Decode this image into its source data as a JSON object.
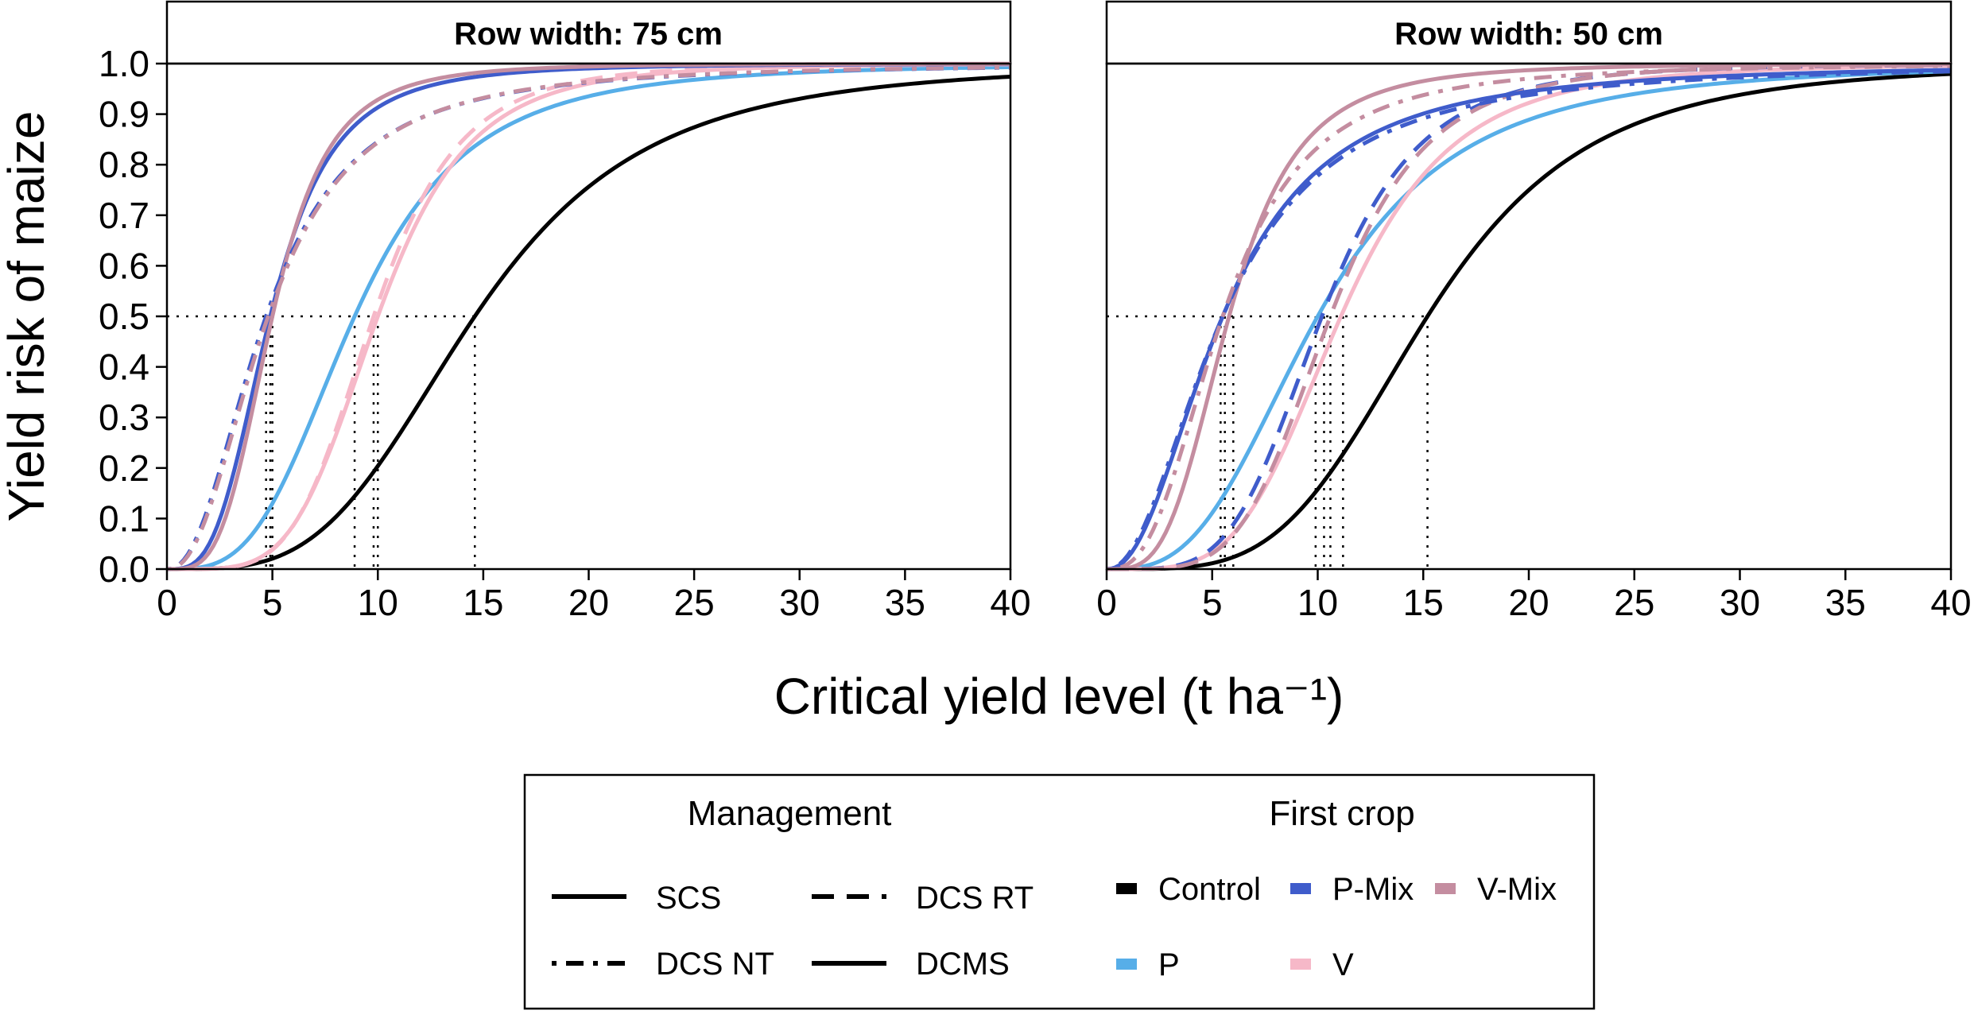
{
  "chart_data": {
    "type": "line",
    "title": "",
    "xlabel": "Critical yield level (t ha⁻¹)",
    "ylabel": "Yield risk of maize",
    "xlim": [
      0,
      40
    ],
    "ylim": [
      0,
      1
    ],
    "x_ticks": [
      "0",
      "5",
      "10",
      "15",
      "20",
      "25",
      "30",
      "35",
      "40"
    ],
    "y_ticks": [
      "0.0",
      "0.1",
      "0.2",
      "0.3",
      "0.4",
      "0.5",
      "0.6",
      "0.7",
      "0.8",
      "0.9",
      "1.0"
    ],
    "reference_level": 0.5,
    "panels": [
      {
        "label": "Row width: 75 cm",
        "series": [
          {
            "first_crop": "Control",
            "management": "SCS",
            "median": 14.6,
            "shape": 3.6
          },
          {
            "first_crop": "P",
            "management": "SCS",
            "median": 8.9,
            "shape": 3.3
          },
          {
            "first_crop": "V",
            "management": "SCS",
            "median": 10.0,
            "shape": 4.6
          },
          {
            "first_crop": "V",
            "management": "DCS RT",
            "median": 9.8,
            "shape": 4.8
          },
          {
            "first_crop": "P-Mix",
            "management": "DCMS",
            "median": 4.9,
            "shape": 3.3
          },
          {
            "first_crop": "V-Mix",
            "management": "DCMS",
            "median": 5.0,
            "shape": 3.7
          },
          {
            "first_crop": "P-Mix",
            "management": "DCS NT",
            "median": 4.7,
            "shape": 2.25
          },
          {
            "first_crop": "V-Mix",
            "management": "DCS NT",
            "median": 4.8,
            "shape": 2.3
          }
        ],
        "median_markers": [
          4.7,
          4.9,
          5.0,
          8.9,
          9.8,
          10.0,
          14.6
        ]
      },
      {
        "label": "Row width: 50 cm",
        "series": [
          {
            "first_crop": "Control",
            "management": "SCS",
            "median": 15.2,
            "shape": 4.0
          },
          {
            "first_crop": "P",
            "management": "SCS",
            "median": 10.0,
            "shape": 3.0
          },
          {
            "first_crop": "V",
            "management": "SCS",
            "median": 11.1,
            "shape": 4.2
          },
          {
            "first_crop": "P-Mix",
            "management": "DCS RT",
            "median": 10.2,
            "shape": 4.4
          },
          {
            "first_crop": "V-Mix",
            "management": "DCS RT",
            "median": 10.6,
            "shape": 4.6
          },
          {
            "first_crop": "P-Mix",
            "management": "DCMS",
            "median": 5.5,
            "shape": 2.2
          },
          {
            "first_crop": "V-Mix",
            "management": "DCMS",
            "median": 5.8,
            "shape": 3.5
          },
          {
            "first_crop": "P-Mix",
            "management": "DCS NT",
            "median": 5.5,
            "shape": 2.1
          },
          {
            "first_crop": "V-Mix",
            "management": "DCS NT",
            "median": 5.5,
            "shape": 2.7
          }
        ],
        "median_markers": [
          5.4,
          5.6,
          6.0,
          9.9,
          10.3,
          10.6,
          11.2,
          15.2
        ]
      }
    ]
  },
  "legend": {
    "management_title": "Management",
    "management": [
      {
        "label": "SCS",
        "dash": "none"
      },
      {
        "label": "DCS RT",
        "dash": "28 16"
      },
      {
        "label": "DCS NT",
        "dash": "6 12 22 12"
      },
      {
        "label": "DCMS",
        "dash": "none"
      }
    ],
    "first_crop_title": "First crop",
    "first_crop": [
      {
        "label": "Control",
        "color": "#000000"
      },
      {
        "label": "P-Mix",
        "color": "#3f5ccb"
      },
      {
        "label": "V-Mix",
        "color": "#c48da0"
      },
      {
        "label": "P",
        "color": "#57aee8"
      },
      {
        "label": "V",
        "color": "#f6b8c8"
      }
    ]
  }
}
